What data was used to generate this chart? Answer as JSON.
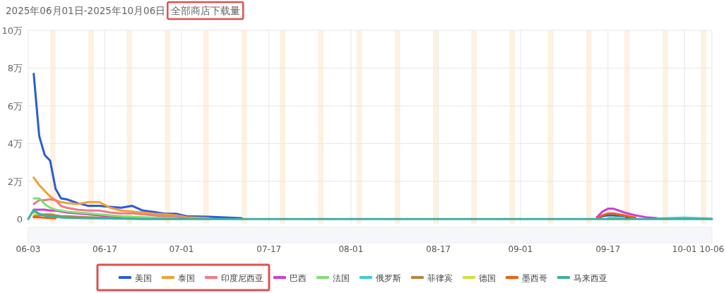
{
  "chart_data": {
    "type": "line",
    "title": "2025年06月01日-2025年10月06日全部商店下载量",
    "x": [
      "2025-06-03",
      "2025-06-04",
      "2025-06-05",
      "2025-06-06",
      "2025-06-07",
      "2025-06-08",
      "2025-06-09",
      "2025-06-10",
      "2025-06-12",
      "2025-06-14",
      "2025-06-16",
      "2025-06-18",
      "2025-06-20",
      "2025-06-22",
      "2025-06-24",
      "2025-06-26",
      "2025-06-28",
      "2025-06-30",
      "2025-07-02",
      "2025-07-06",
      "2025-07-12",
      "2025-07-20",
      "2025-08-01",
      "2025-08-15",
      "2025-09-01",
      "2025-09-12",
      "2025-09-14",
      "2025-09-15",
      "2025-09-16",
      "2025-09-17",
      "2025-09-18",
      "2025-09-19",
      "2025-09-20",
      "2025-09-22",
      "2025-09-24",
      "2025-09-26",
      "2025-10-01",
      "2025-10-06"
    ],
    "series": [
      {
        "name": "美国",
        "color": "#2b5bd7",
        "values": [
          null,
          7.7,
          4.4,
          3.4,
          3.1,
          1.6,
          1.1,
          1.05,
          0.85,
          0.7,
          0.7,
          0.65,
          0.6,
          0.7,
          0.45,
          0.38,
          0.28,
          0.28,
          0.15,
          0.12,
          0.05,
          null,
          null,
          null,
          null,
          null,
          null,
          0.05,
          0.15,
          0.2,
          0.2,
          0.15,
          0.1,
          0.05,
          null,
          null,
          null,
          null
        ]
      },
      {
        "name": "泰国",
        "color": "#f0a030",
        "values": [
          null,
          2.2,
          1.8,
          1.5,
          1.2,
          1,
          0.9,
          0.85,
          0.8,
          0.9,
          0.9,
          0.6,
          0.45,
          0.4,
          0.35,
          0.28,
          0.25,
          0.2,
          0.1,
          0.05,
          null,
          null,
          null,
          null,
          null,
          null,
          null,
          null,
          null,
          null,
          null,
          null,
          null,
          null,
          null,
          null,
          null,
          null
        ]
      },
      {
        "name": "印度尼西亚",
        "color": "#f07a8a",
        "values": [
          null,
          0.8,
          1,
          1,
          1.05,
          1,
          0.7,
          0.6,
          0.5,
          0.45,
          0.45,
          0.35,
          0.3,
          0.3,
          0.25,
          0.2,
          0.15,
          0.12,
          0.06,
          null,
          null,
          null,
          null,
          null,
          null,
          null,
          null,
          null,
          null,
          null,
          null,
          null,
          null,
          null,
          null,
          null,
          null,
          null
        ]
      },
      {
        "name": "巴西",
        "color": "#d03cd8",
        "values": [
          null,
          0.5,
          0.5,
          0.5,
          0.45,
          0.45,
          0.4,
          0.35,
          0.3,
          0.25,
          0.2,
          0.15,
          0.12,
          0.1,
          0.08,
          0.06,
          0.05,
          null,
          null,
          null,
          null,
          null,
          null,
          null,
          null,
          null,
          null,
          0.1,
          0.4,
          0.55,
          0.55,
          0.45,
          0.35,
          0.2,
          0.1,
          0.05,
          null,
          null
        ]
      },
      {
        "name": "法国",
        "color": "#80e070",
        "values": [
          null,
          1.1,
          1.1,
          0.8,
          0.6,
          0.5,
          0.45,
          0.4,
          0.35,
          0.3,
          0.25,
          0.2,
          0.15,
          0.12,
          0.1,
          0.08,
          0.06,
          0.05,
          null,
          null,
          null,
          null,
          null,
          null,
          null,
          null,
          null,
          null,
          null,
          0.06,
          0.08,
          0.08,
          0.06,
          null,
          null,
          null,
          null,
          null
        ]
      },
      {
        "name": "俄罗斯",
        "color": "#40c8e0",
        "values": [
          null,
          0.4,
          0.3,
          0.2,
          0.15,
          0.12,
          0.1,
          0.08,
          0.07,
          0.06,
          0.05,
          null,
          null,
          null,
          null,
          null,
          null,
          null,
          null,
          null,
          null,
          null,
          null,
          null,
          null,
          null,
          null,
          null,
          null,
          null,
          null,
          null,
          null,
          null,
          null,
          0.03,
          0.08,
          0.02
        ]
      },
      {
        "name": "菲律宾",
        "color": "#b8843c",
        "values": [
          null,
          0.15,
          0.2,
          0.25,
          0.25,
          0.2,
          0.15,
          0.15,
          0.12,
          0.1,
          0.08,
          0.06,
          0.05,
          null,
          null,
          null,
          null,
          null,
          null,
          null,
          null,
          null,
          null,
          null,
          null,
          null,
          null,
          null,
          null,
          null,
          null,
          null,
          null,
          null,
          null,
          null,
          null,
          null
        ]
      },
      {
        "name": "德国",
        "color": "#d0e040",
        "values": [
          null,
          0.3,
          0.25,
          null,
          null,
          null,
          null,
          null,
          null,
          null,
          null,
          null,
          null,
          null,
          null,
          null,
          null,
          null,
          null,
          null,
          null,
          null,
          null,
          null,
          null,
          null,
          null,
          null,
          null,
          null,
          null,
          null,
          null,
          null,
          null,
          null,
          null,
          null
        ]
      },
      {
        "name": "墨西哥",
        "color": "#f06010",
        "values": [
          null,
          0.1,
          0.1,
          0.08,
          0.06,
          0.05,
          null,
          null,
          null,
          null,
          null,
          null,
          null,
          null,
          null,
          null,
          null,
          null,
          null,
          null,
          null,
          null,
          null,
          null,
          null,
          null,
          null,
          0.05,
          0.2,
          0.3,
          0.3,
          0.25,
          0.2,
          0.08,
          null,
          null,
          null,
          null
        ]
      },
      {
        "name": "马来西亚",
        "color": "#3cb0a0",
        "values": [
          0,
          0.5,
          0.25,
          0.2,
          0.15,
          0.12,
          0.1,
          0.08,
          0.06,
          0.05,
          0.04,
          0.03,
          0.02,
          0.01,
          0,
          0,
          0,
          0,
          0,
          0,
          0,
          0,
          0,
          0,
          0,
          0,
          0,
          0,
          0,
          0,
          0,
          0,
          0,
          0,
          0,
          0,
          0,
          0
        ]
      }
    ],
    "xlim": [
      "2025-06-03",
      "2025-10-06"
    ],
    "xticks": [
      {
        "value": "2025-06-03",
        "label": "06-03"
      },
      {
        "value": "2025-06-17",
        "label": "06-17"
      },
      {
        "value": "2025-07-01",
        "label": "07-01"
      },
      {
        "value": "2025-07-17",
        "label": "07-17"
      },
      {
        "value": "2025-08-01",
        "label": "08-01"
      },
      {
        "value": "2025-08-17",
        "label": "08-17"
      },
      {
        "value": "2025-09-01",
        "label": "09-01"
      },
      {
        "value": "2025-09-17",
        "label": "09-17"
      },
      {
        "value": "2025-10-01",
        "label": "10-01"
      },
      {
        "value": "2025-10-06",
        "label": "10-06"
      }
    ],
    "ylim": [
      -0.25,
      10
    ],
    "yticks": [
      {
        "value": 0,
        "label": "0"
      },
      {
        "value": 2,
        "label": "2万"
      },
      {
        "value": 4,
        "label": "4万"
      },
      {
        "value": 6,
        "label": "6万"
      },
      {
        "value": 8,
        "label": "8万"
      },
      {
        "value": 10,
        "label": "10万"
      }
    ],
    "bands": [
      {
        "axis": "x",
        "from": "2025-06-07",
        "to": "2025-06-08",
        "color": "#fdf1e0"
      },
      {
        "axis": "x",
        "from": "2025-06-14",
        "to": "2025-06-15",
        "color": "#fdf1e0"
      },
      {
        "axis": "x",
        "from": "2025-06-21",
        "to": "2025-06-22",
        "color": "#fdf1e0"
      },
      {
        "axis": "x",
        "from": "2025-06-28",
        "to": "2025-06-29",
        "color": "#fdf1e0"
      },
      {
        "axis": "x",
        "from": "2025-07-05",
        "to": "2025-07-06",
        "color": "#fdf1e0"
      },
      {
        "axis": "x",
        "from": "2025-07-12",
        "to": "2025-07-13",
        "color": "#fdf1e0"
      },
      {
        "axis": "x",
        "from": "2025-07-19",
        "to": "2025-07-20",
        "color": "#fdf1e0"
      },
      {
        "axis": "x",
        "from": "2025-07-26",
        "to": "2025-07-27",
        "color": "#fdf1e0"
      },
      {
        "axis": "x",
        "from": "2025-08-02",
        "to": "2025-08-03",
        "color": "#fdf1e0"
      },
      {
        "axis": "x",
        "from": "2025-08-09",
        "to": "2025-08-10",
        "color": "#fdf1e0"
      },
      {
        "axis": "x",
        "from": "2025-08-16",
        "to": "2025-08-17",
        "color": "#fdf1e0"
      },
      {
        "axis": "x",
        "from": "2025-08-23",
        "to": "2025-08-24",
        "color": "#fdf1e0"
      },
      {
        "axis": "x",
        "from": "2025-08-30",
        "to": "2025-08-31",
        "color": "#fdf1e0"
      },
      {
        "axis": "x",
        "from": "2025-09-06",
        "to": "2025-09-07",
        "color": "#fdf1e0"
      },
      {
        "axis": "x",
        "from": "2025-09-13",
        "to": "2025-09-14",
        "color": "#fdf1e0"
      },
      {
        "axis": "x",
        "from": "2025-09-20",
        "to": "2025-09-21",
        "color": "#fdf1e0"
      },
      {
        "axis": "x",
        "from": "2025-09-27",
        "to": "2025-09-28",
        "color": "#fdf1e0"
      },
      {
        "axis": "x",
        "from": "2025-10-04",
        "to": "2025-10-05",
        "color": "#fdf1e0"
      }
    ],
    "grid": true,
    "legend": "bottom",
    "marker": "none",
    "line_style": "solid"
  }
}
